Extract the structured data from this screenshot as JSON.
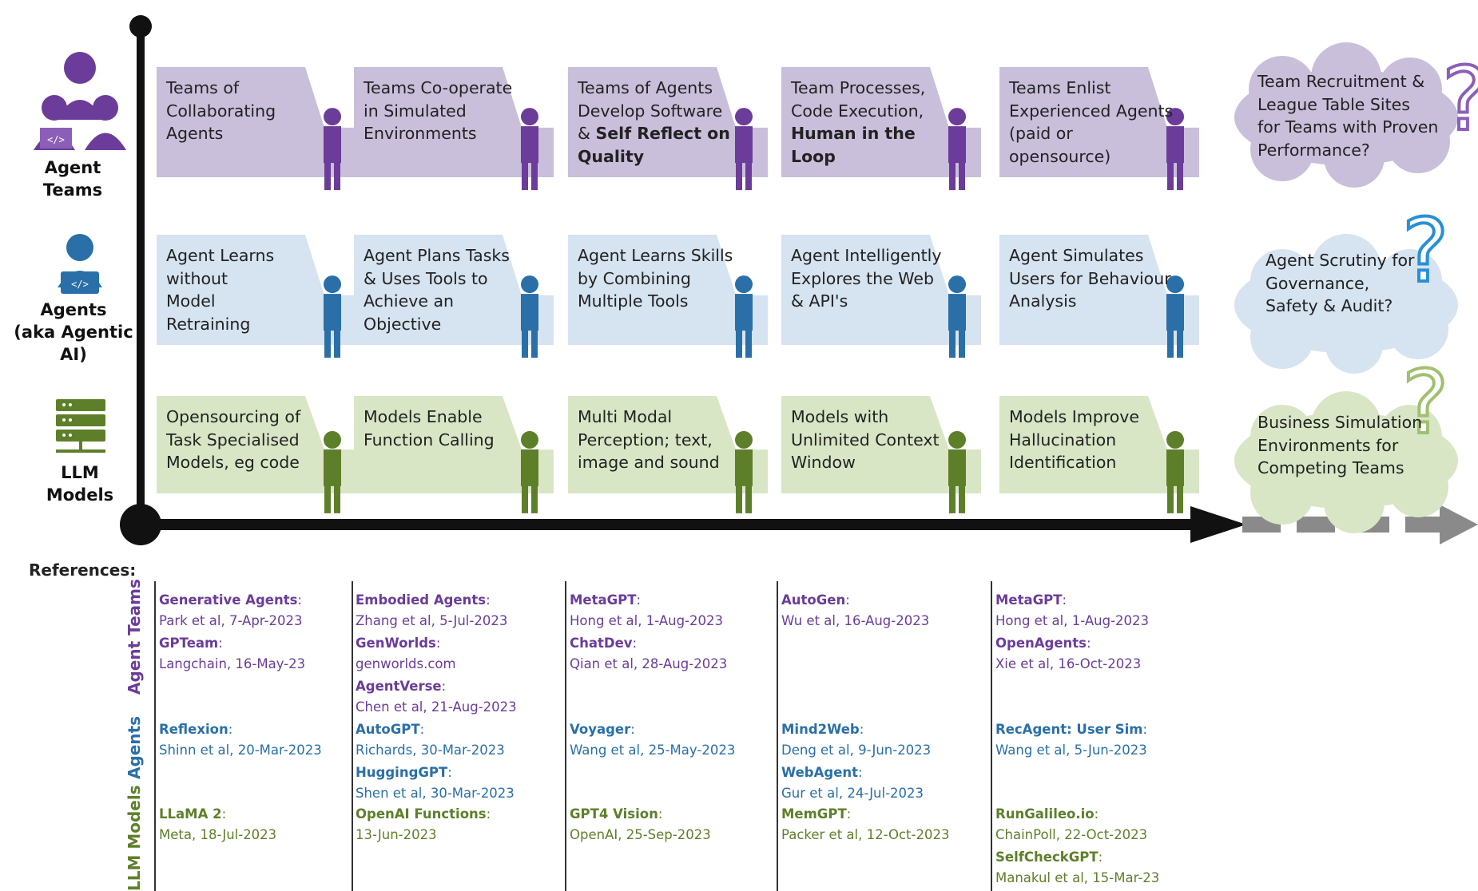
{
  "rows": {
    "agent_teams": {
      "label": "Agent Teams",
      "color": "#6b3c9a",
      "card_bg": "#c9bfdb"
    },
    "agents": {
      "label_line1": "Agents",
      "label_line2": "(aka Agentic AI)",
      "color": "#2a6fa8",
      "card_bg": "#d6e3f0"
    },
    "llm": {
      "label_line1": "LLM",
      "label_line2": "Models",
      "color": "#5e7f2a",
      "card_bg": "#d8e6c5"
    }
  },
  "team_cards": [
    {
      "text": "Teams of\nCollaborating\nAgents"
    },
    {
      "text": "Teams Co-operate\nin Simulated\nEnvironments"
    },
    {
      "text": "Teams of Agents\nDevelop Software\n& ",
      "bold": "Self Reflect on\nQuality"
    },
    {
      "text": "Team Processes,\nCode Execution,\n",
      "bold": "Human in the\nLoop"
    },
    {
      "text": "Teams Enlist\nExperienced Agents\n(paid or\nopensource)"
    }
  ],
  "team_future": "Team Recruitment &\nLeague Table Sites\nfor Teams with Proven\nPerformance?",
  "agent_cards": [
    {
      "text": "Agent Learns\nwithout\nModel\nRetraining"
    },
    {
      "text": "Agent Plans Tasks\n& Uses Tools to\nAchieve an\nObjective"
    },
    {
      "text": "Agent Learns Skills\nby Combining\nMultiple Tools"
    },
    {
      "text": "Agent Intelligently\nExplores the Web\n& API's"
    },
    {
      "text": "Agent Simulates\nUsers for Behaviour\nAnalysis"
    }
  ],
  "agent_future": "Agent Scrutiny for\nGovernance,\nSafety & Audit?",
  "llm_cards": [
    {
      "text": "Opensourcing of\nTask Specialised\nModels, eg code"
    },
    {
      "text": "Models Enable\nFunction Calling"
    },
    {
      "text": "Multi Modal\nPerception; text,\nimage and sound"
    },
    {
      "text": "Models with\nUnlimited Context\nWindow"
    },
    {
      "text": "Models Improve\nHallucination\nIdentification"
    }
  ],
  "llm_future": "Business Simulation\nEnvironments for\nCompeting Teams",
  "references": {
    "title": "References:",
    "row_labels": [
      "Agent Teams",
      "Agents",
      "LLM Models"
    ],
    "columns": [
      {
        "teams": [
          {
            "name": "Generative Agents",
            "detail": "Park et al, 7-Apr-2023"
          },
          {
            "name": "GPTeam",
            "detail": "Langchain, 16-May-23"
          }
        ],
        "agents": [
          {
            "name": "Reflexion",
            "detail": "Shinn et al, 20-Mar-2023"
          }
        ],
        "llm": [
          {
            "name": "LLaMA 2",
            "detail": "Meta, 18-Jul-2023"
          }
        ]
      },
      {
        "teams": [
          {
            "name": "Embodied Agents",
            "detail": "Zhang et al, 5-Jul-2023"
          },
          {
            "name": "GenWorlds",
            "detail": "genworlds.com"
          },
          {
            "name": "AgentVerse",
            "detail": "Chen et al, 21-Aug-2023"
          }
        ],
        "agents": [
          {
            "name": "AutoGPT",
            "detail": "Richards, 30-Mar-2023"
          },
          {
            "name": "HuggingGPT",
            "detail": "Shen et al, 30-Mar-2023"
          }
        ],
        "llm": [
          {
            "name": "OpenAI Functions",
            "detail": "13-Jun-2023"
          }
        ]
      },
      {
        "teams": [
          {
            "name": "MetaGPT",
            "detail": "Hong et al, 1-Aug-2023"
          },
          {
            "name": "ChatDev",
            "detail": "Qian et al, 28-Aug-2023"
          }
        ],
        "agents": [
          {
            "name": "Voyager",
            "detail": "Wang et al, 25-May-2023"
          }
        ],
        "llm": [
          {
            "name": "GPT4 Vision",
            "detail": "OpenAI, 25-Sep-2023"
          }
        ]
      },
      {
        "teams": [
          {
            "name": "AutoGen",
            "detail": "Wu et al, 16-Aug-2023"
          }
        ],
        "agents": [
          {
            "name": "Mind2Web",
            "detail": "Deng et al, 9-Jun-2023"
          },
          {
            "name": "WebAgent",
            "detail": "Gur et al, 24-Jul-2023"
          }
        ],
        "llm": [
          {
            "name": "MemGPT",
            "detail": "Packer et al, 12-Oct-2023"
          }
        ]
      },
      {
        "teams": [
          {
            "name": "MetaGPT",
            "detail": "Hong et al, 1-Aug-2023"
          },
          {
            "name": "OpenAgents",
            "detail": "Xie et al, 16-Oct-2023"
          }
        ],
        "agents": [
          {
            "name": "RecAgent: User Sim",
            "detail": "Wang et al, 5-Jun-2023"
          }
        ],
        "llm": [
          {
            "name": "RunGalileo.io",
            "detail": "ChainPoll, 22-Oct-2023"
          },
          {
            "name": "SelfCheckGPT",
            "detail": "Manakul et al, 15-Mar-23"
          }
        ]
      }
    ]
  }
}
